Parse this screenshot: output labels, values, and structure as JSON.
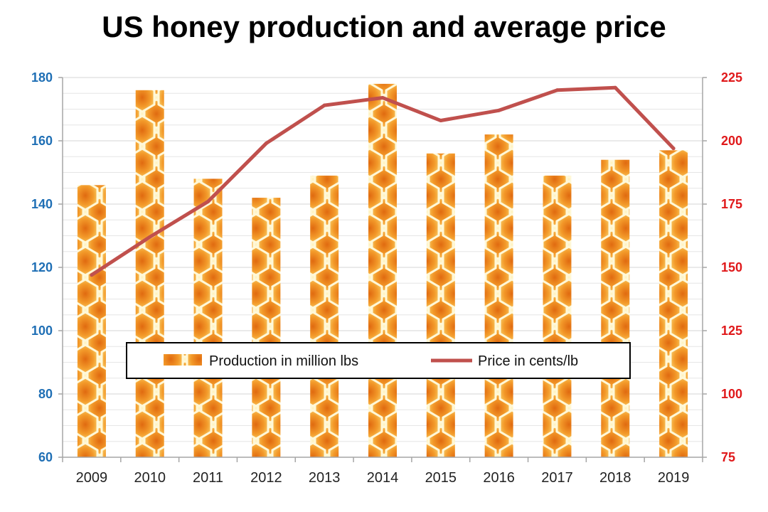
{
  "chart_data": {
    "type": "bar",
    "title": "US honey production and average price",
    "categories": [
      "2009",
      "2010",
      "2011",
      "2012",
      "2013",
      "2014",
      "2015",
      "2016",
      "2017",
      "2018",
      "2019"
    ],
    "series": [
      {
        "name": "Production in million lbs",
        "type": "bar",
        "axis": "left",
        "values": [
          146,
          176,
          148,
          142,
          149,
          178,
          156,
          162,
          149,
          154,
          157
        ]
      },
      {
        "name": "Price in cents/lb",
        "type": "line",
        "axis": "right",
        "values": [
          147,
          162,
          176,
          199,
          214,
          217,
          208,
          212,
          220,
          221,
          197
        ]
      }
    ],
    "y_left": {
      "ylim": [
        60,
        180
      ],
      "ticks": [
        "60",
        "80",
        "100",
        "120",
        "140",
        "160",
        "180"
      ]
    },
    "y_right": {
      "ylim": [
        75,
        225
      ],
      "ticks": [
        "75",
        "100",
        "125",
        "150",
        "175",
        "200",
        "225"
      ]
    },
    "grid": true,
    "legend_position": "bottom-center",
    "colors": {
      "left_axis": "#1f6fb5",
      "right_axis": "#e0191b",
      "line": "#c0504d",
      "bar_base": "#f08a1c",
      "bar_cell_edge": "#fff6cc"
    }
  }
}
